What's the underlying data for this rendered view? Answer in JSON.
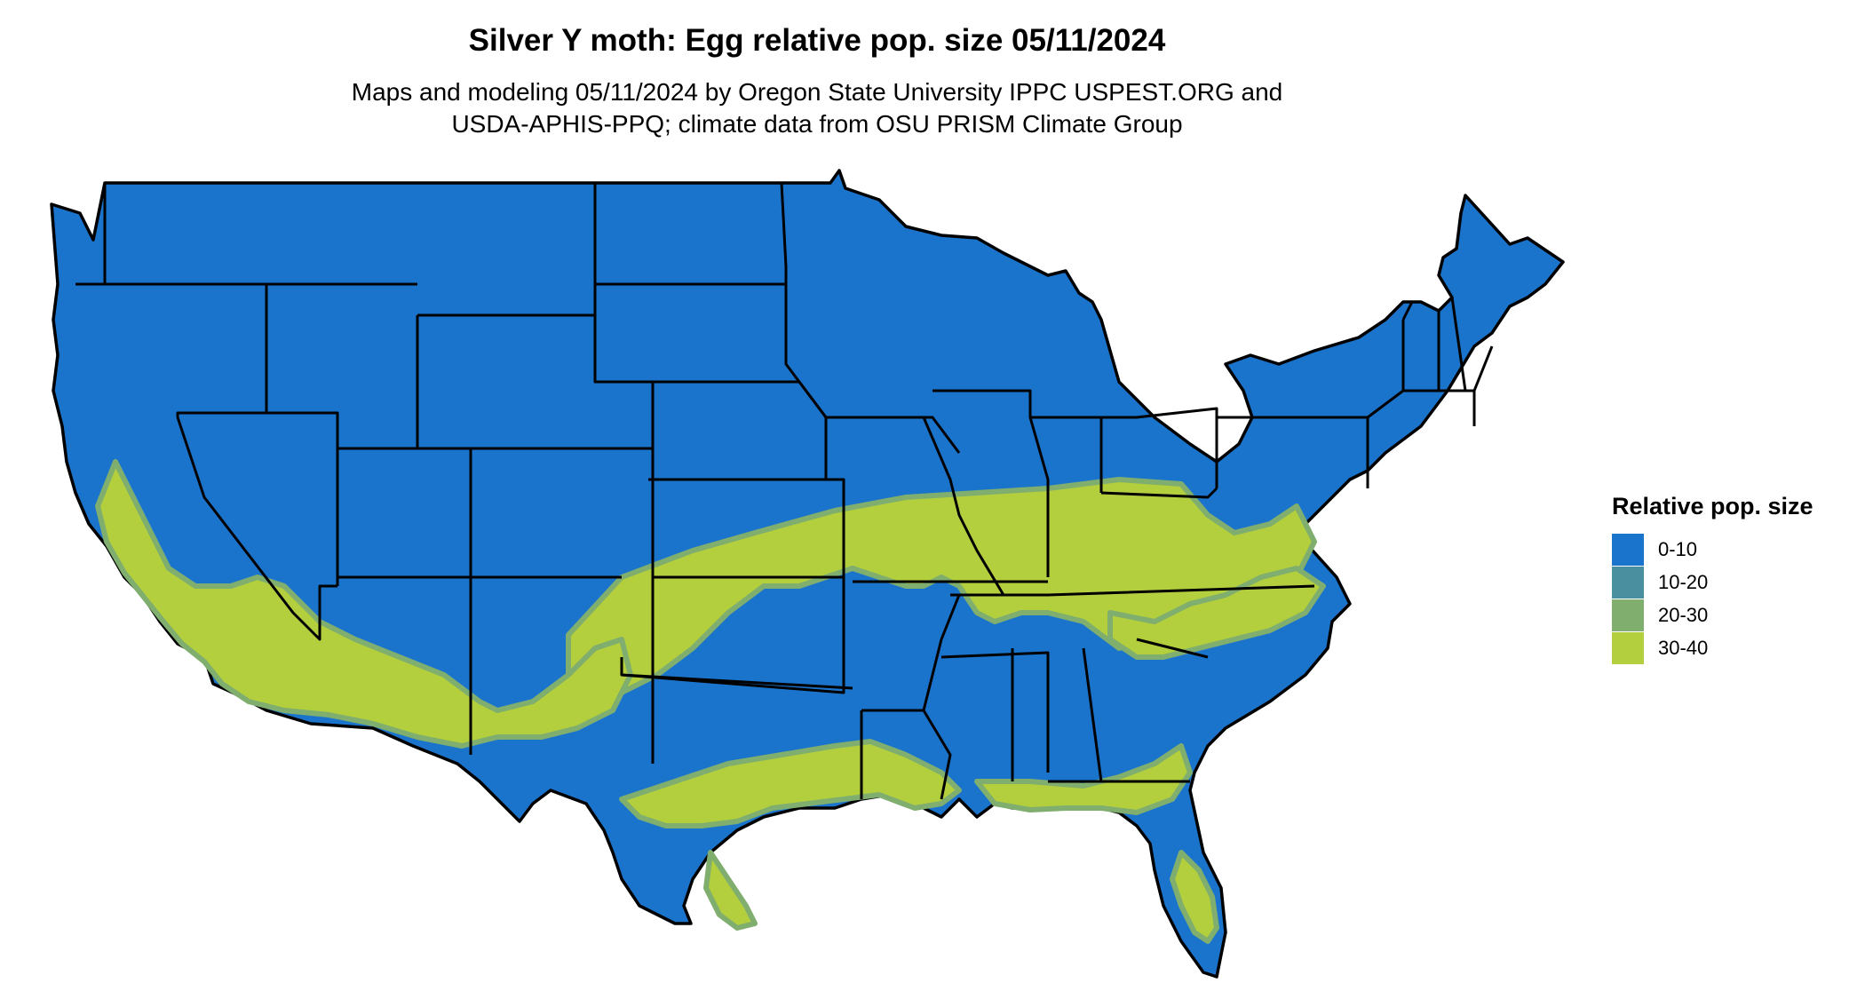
{
  "title": "Silver Y moth: Egg relative pop. size 05/11/2024",
  "subtitle_lines": [
    "Maps and modeling 05/11/2024 by Oregon State University IPPC USPEST.ORG and",
    "USDA-APHIS-PPQ; climate data from OSU PRISM Climate Group"
  ],
  "legend": {
    "title": "Relative pop. size",
    "items": [
      {
        "label": "0-10",
        "color": "#1b74cc"
      },
      {
        "label": "10-20",
        "color": "#4a8fa0"
      },
      {
        "label": "20-30",
        "color": "#7fae6e"
      },
      {
        "label": "30-40",
        "color": "#b3cf3e"
      }
    ]
  },
  "colors": {
    "base": "#1b74cc",
    "mid": "#7fae6e",
    "high": "#b3cf3e",
    "border": "#000000"
  }
}
